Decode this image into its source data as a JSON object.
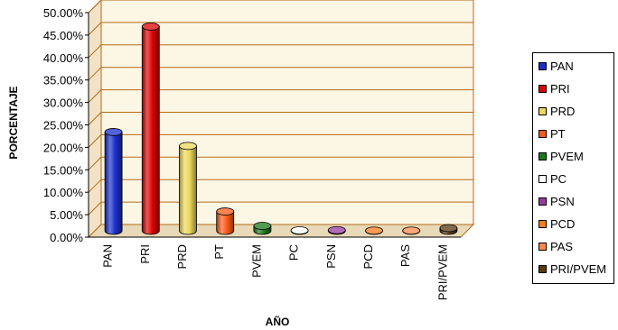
{
  "chart_data": {
    "type": "bar",
    "categories": [
      "PAN",
      "PRI",
      "PRD",
      "PT",
      "PVEM",
      "PC",
      "PSN",
      "PCD",
      "PAS",
      "PRI/PVEM"
    ],
    "values": [
      22.0,
      45.5,
      18.9,
      4.3,
      1.1,
      0.1,
      0.15,
      0.05,
      0.05,
      0.6
    ],
    "colors": [
      "#1a2ecc",
      "#dd0000",
      "#ecd85a",
      "#ff5a1a",
      "#1a7a1a",
      "#ffffff",
      "#9a3aa0",
      "#ff7a1a",
      "#ff8a4a",
      "#5a3a10"
    ],
    "title": "",
    "xlabel": "AÑO",
    "ylabel": "PORCENTAJE",
    "ylim": [
      0,
      50
    ],
    "yticks": [
      "0.00%",
      "5.00%",
      "10.00%",
      "15.00%",
      "20.00%",
      "25.00%",
      "30.00%",
      "35.00%",
      "40.00%",
      "45.00%",
      "50.00%"
    ],
    "grid": true,
    "legend": "right",
    "style": "3d-cylinder"
  }
}
